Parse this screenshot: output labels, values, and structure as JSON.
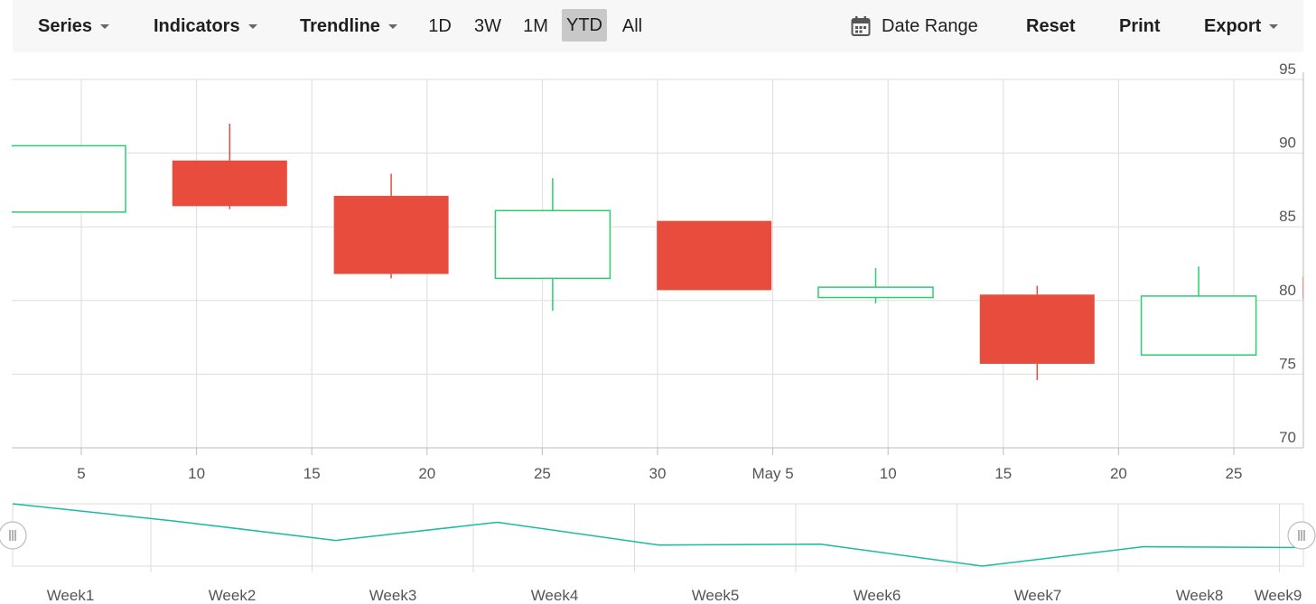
{
  "toolbar": {
    "series_label": "Series",
    "indicators_label": "Indicators",
    "trendline_label": "Trendline",
    "periods": [
      "1D",
      "3W",
      "1M",
      "YTD",
      "All"
    ],
    "active_period": "YTD",
    "date_range_label": "Date Range",
    "reset_label": "Reset",
    "print_label": "Print",
    "export_label": "Export"
  },
  "colors": {
    "bullish": "#2ecc71",
    "bearish": "#e74c3c",
    "navigator_line": "#1abc9c",
    "grid": "#dddddd"
  },
  "icons": {
    "date_range": "calendar-icon",
    "dropdown": "caret-down-icon",
    "navigator_handle": "grip-handle-icon"
  },
  "chart_data": [
    {
      "type": "candlestick",
      "x_axis": {
        "ticks": [
          "5",
          "10",
          "15",
          "20",
          "25",
          "30",
          "May 5",
          "10",
          "15",
          "20",
          "25"
        ]
      },
      "y_axis": {
        "position": "right",
        "ticks": [
          70,
          75,
          80,
          85,
          90,
          95
        ],
        "range": [
          70,
          95
        ]
      },
      "grid": true,
      "series": [
        {
          "open": 86.0,
          "high": 90.5,
          "low": 86.0,
          "close": 90.5,
          "direction": "up"
        },
        {
          "open": 89.5,
          "high": 92.0,
          "low": 86.2,
          "close": 86.4,
          "direction": "down"
        },
        {
          "open": 87.1,
          "high": 88.6,
          "low": 81.5,
          "close": 81.8,
          "direction": "down"
        },
        {
          "open": 81.5,
          "high": 88.3,
          "low": 79.3,
          "close": 86.1,
          "direction": "up"
        },
        {
          "open": 85.4,
          "high": 85.4,
          "low": 80.7,
          "close": 80.7,
          "direction": "down"
        },
        {
          "open": 80.2,
          "high": 82.2,
          "low": 79.8,
          "close": 80.9,
          "direction": "up"
        },
        {
          "open": 80.4,
          "high": 81.0,
          "low": 74.6,
          "close": 75.7,
          "direction": "down"
        },
        {
          "open": 76.3,
          "high": 82.3,
          "low": 76.3,
          "close": 80.3,
          "direction": "up"
        },
        {
          "open": 81.6,
          "high": 83.0,
          "low": 80.0,
          "close": 80.1,
          "direction": "down"
        }
      ]
    },
    {
      "type": "line",
      "role": "navigator",
      "x_axis": {
        "ticks": [
          "Week1",
          "Week2",
          "Week3",
          "Week4",
          "Week5",
          "Week6",
          "Week7",
          "Week8",
          "Week9"
        ]
      },
      "grid": true,
      "values": [
        90.5,
        86.4,
        81.8,
        86.1,
        80.7,
        80.9,
        75.7,
        80.3,
        80.1
      ]
    }
  ]
}
